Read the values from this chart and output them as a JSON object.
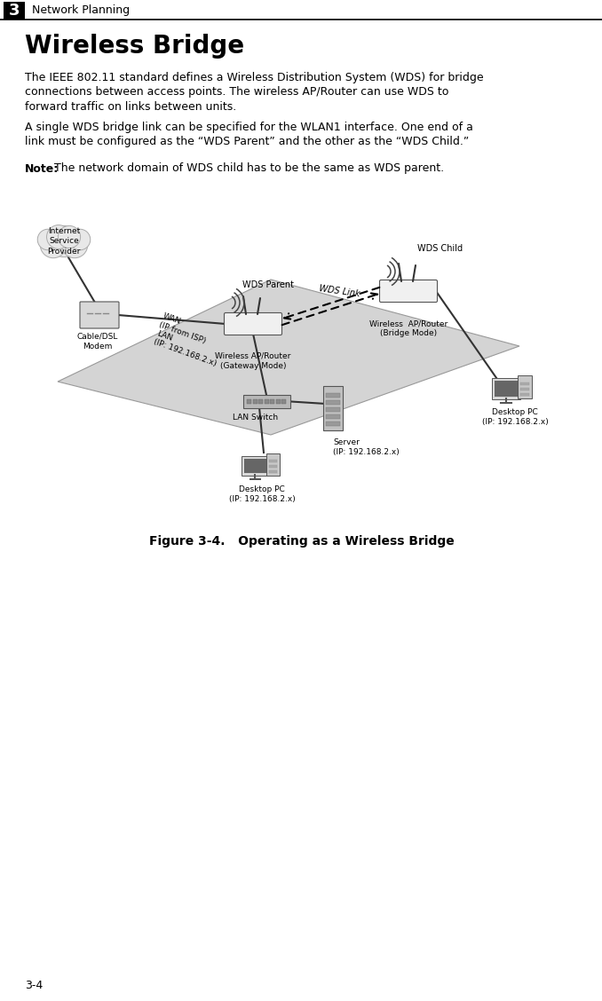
{
  "page_num": "3-4",
  "chapter_num": "3",
  "chapter_title": "Network Planning",
  "section_title": "Wireless Bridge",
  "para1_lines": [
    "The IEEE 802.11 standard defines a Wireless Distribution System (WDS) for bridge",
    "connections between access points. The wireless AP/Router can use WDS to",
    "forward traffic on links between units."
  ],
  "para2_lines": [
    "A single WDS bridge link can be specified for the WLAN1 interface. One end of a",
    "link must be configured as the “WDS Parent” and the other as the “WDS Child.”"
  ],
  "note_bold": "Note:",
  "note_text": "   The network domain of WDS child has to be the same as WDS parent.",
  "figure_caption": "Figure 3-4.   Operating as a Wireless Bridge",
  "bg_color": "#ffffff",
  "labels": {
    "internet_sp": "Internet\nService\nProvider",
    "cable_dsl": "Cable/DSL\nModem",
    "wan": "WAN\n(IP from ISP)",
    "lan": "LAN\n(IP: 192.168.2.x)",
    "wireless_gw": "Wireless AP/Router\n(Gateway Mode)",
    "wireless_br": "Wireless  AP/Router\n(Bridge Mode)",
    "lan_switch": "LAN Switch",
    "server": "Server\n(IP: 192.168.2.x)",
    "desktop_bottom": "Desktop PC\n(IP: 192.168.2.x)",
    "desktop_right": "Desktop PC\n(IP: 192.168.2.x)",
    "wds_parent": "WDS Parent",
    "wds_child": "WDS Child",
    "wds_link": "WDS Link"
  }
}
